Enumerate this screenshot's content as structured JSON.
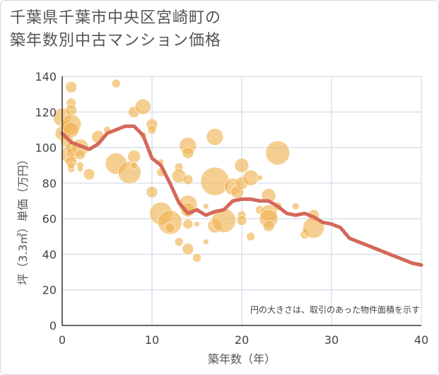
{
  "title": {
    "line1": "千葉県千葉市中央区宮崎町の",
    "line2": "築年数別中古マンション価格"
  },
  "chart_data": {
    "type": "scatter",
    "xlabel": "築年数（年）",
    "ylabel": "坪（3.3㎡）単価（万円）",
    "xlim": [
      0,
      40
    ],
    "ylim": [
      0,
      140
    ],
    "xticks": [
      0,
      10,
      20,
      30,
      40
    ],
    "yticks": [
      0,
      20,
      40,
      60,
      80,
      100,
      120,
      140
    ],
    "grid": true,
    "note": "円の大きさは、取引のあった物件面積を示す",
    "colors": {
      "bubble": "#f0b656",
      "line": "#d4685a",
      "grid": "#c9d3e3"
    },
    "bubbles": [
      {
        "x": 0,
        "y": 117,
        "s": 13
      },
      {
        "x": 0,
        "y": 108,
        "s": 10
      },
      {
        "x": 0.5,
        "y": 112,
        "s": 9
      },
      {
        "x": 0.5,
        "y": 104,
        "s": 9
      },
      {
        "x": 0.8,
        "y": 96,
        "s": 12
      },
      {
        "x": 1,
        "y": 134,
        "s": 8
      },
      {
        "x": 1,
        "y": 125,
        "s": 7
      },
      {
        "x": 1,
        "y": 121,
        "s": 8
      },
      {
        "x": 1,
        "y": 113,
        "s": 14
      },
      {
        "x": 1,
        "y": 110,
        "s": 11
      },
      {
        "x": 1,
        "y": 100,
        "s": 8
      },
      {
        "x": 1,
        "y": 97,
        "s": 7
      },
      {
        "x": 1,
        "y": 92,
        "s": 8
      },
      {
        "x": 1,
        "y": 88,
        "s": 5
      },
      {
        "x": 1,
        "y": 90,
        "s": 5
      },
      {
        "x": 2,
        "y": 100,
        "s": 12
      },
      {
        "x": 2,
        "y": 96,
        "s": 7
      },
      {
        "x": 2,
        "y": 90,
        "s": 5
      },
      {
        "x": 2,
        "y": 88,
        "s": 4
      },
      {
        "x": 3,
        "y": 85,
        "s": 8
      },
      {
        "x": 4,
        "y": 106,
        "s": 9
      },
      {
        "x": 5,
        "y": 110,
        "s": 5
      },
      {
        "x": 6,
        "y": 136,
        "s": 6
      },
      {
        "x": 6,
        "y": 91,
        "s": 15
      },
      {
        "x": 7.5,
        "y": 86,
        "s": 16
      },
      {
        "x": 8,
        "y": 120,
        "s": 8
      },
      {
        "x": 8,
        "y": 95,
        "s": 9
      },
      {
        "x": 8,
        "y": 90,
        "s": 5
      },
      {
        "x": 9,
        "y": 123,
        "s": 11
      },
      {
        "x": 9,
        "y": 107,
        "s": 5
      },
      {
        "x": 10,
        "y": 113,
        "s": 8
      },
      {
        "x": 10,
        "y": 110,
        "s": 6
      },
      {
        "x": 10,
        "y": 75,
        "s": 8
      },
      {
        "x": 11,
        "y": 92,
        "s": 4
      },
      {
        "x": 11,
        "y": 86,
        "s": 6
      },
      {
        "x": 11,
        "y": 63,
        "s": 16
      },
      {
        "x": 12,
        "y": 58,
        "s": 17
      },
      {
        "x": 12,
        "y": 55,
        "s": 7
      },
      {
        "x": 13,
        "y": 89,
        "s": 6
      },
      {
        "x": 13,
        "y": 84,
        "s": 10
      },
      {
        "x": 13,
        "y": 47,
        "s": 6
      },
      {
        "x": 14,
        "y": 101,
        "s": 12
      },
      {
        "x": 14,
        "y": 97,
        "s": 8
      },
      {
        "x": 14,
        "y": 82,
        "s": 7
      },
      {
        "x": 14,
        "y": 68,
        "s": 13
      },
      {
        "x": 14,
        "y": 65,
        "s": 10
      },
      {
        "x": 14,
        "y": 57,
        "s": 7
      },
      {
        "x": 14,
        "y": 43,
        "s": 8
      },
      {
        "x": 15,
        "y": 38,
        "s": 6
      },
      {
        "x": 15,
        "y": 57,
        "s": 4
      },
      {
        "x": 16,
        "y": 47,
        "s": 4
      },
      {
        "x": 16,
        "y": 67,
        "s": 4
      },
      {
        "x": 17,
        "y": 106,
        "s": 12
      },
      {
        "x": 17,
        "y": 81,
        "s": 20
      },
      {
        "x": 17,
        "y": 56,
        "s": 10
      },
      {
        "x": 18,
        "y": 59,
        "s": 17
      },
      {
        "x": 19,
        "y": 78,
        "s": 12
      },
      {
        "x": 19.5,
        "y": 75,
        "s": 9
      },
      {
        "x": 20,
        "y": 90,
        "s": 10
      },
      {
        "x": 20,
        "y": 80,
        "s": 9
      },
      {
        "x": 20,
        "y": 62,
        "s": 6
      },
      {
        "x": 20,
        "y": 59,
        "s": 7
      },
      {
        "x": 21,
        "y": 83,
        "s": 11
      },
      {
        "x": 21,
        "y": 50,
        "s": 6
      },
      {
        "x": 22,
        "y": 83,
        "s": 4
      },
      {
        "x": 22,
        "y": 65,
        "s": 6
      },
      {
        "x": 23,
        "y": 73,
        "s": 10
      },
      {
        "x": 23,
        "y": 63,
        "s": 12
      },
      {
        "x": 23,
        "y": 60,
        "s": 13
      },
      {
        "x": 23,
        "y": 56,
        "s": 8
      },
      {
        "x": 24,
        "y": 97,
        "s": 17
      },
      {
        "x": 24,
        "y": 67,
        "s": 6
      },
      {
        "x": 27,
        "y": 51,
        "s": 6
      },
      {
        "x": 27,
        "y": 53,
        "s": 4
      },
      {
        "x": 28,
        "y": 62,
        "s": 8
      },
      {
        "x": 28,
        "y": 55,
        "s": 15
      },
      {
        "x": 26,
        "y": 67,
        "s": 5
      }
    ],
    "line": {
      "x": [
        0,
        1,
        2,
        3,
        4,
        5,
        6,
        7,
        8,
        9,
        10,
        11,
        12,
        13,
        14,
        15,
        16,
        17,
        18,
        19,
        20,
        21,
        22,
        23,
        24,
        25,
        26,
        27,
        28,
        29,
        30,
        31,
        32,
        33,
        34,
        35,
        36,
        37,
        38,
        39,
        40
      ],
      "y": [
        108,
        103,
        101,
        99,
        102,
        108,
        110,
        112,
        112,
        107,
        94,
        90,
        80,
        69,
        63,
        65,
        62,
        64,
        65,
        70,
        71,
        71,
        70,
        70,
        67,
        63,
        62,
        63,
        61,
        58,
        57,
        55,
        49,
        47,
        45,
        43,
        41,
        39,
        37,
        35,
        34
      ]
    }
  }
}
